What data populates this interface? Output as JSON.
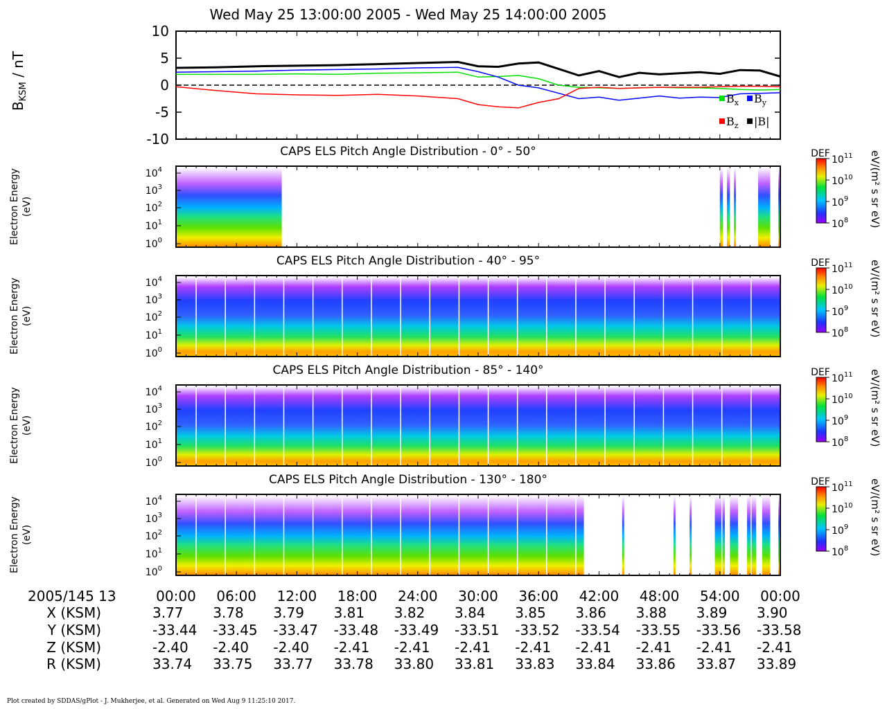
{
  "title": "Wed May 25 13:00:00 2005 - Wed May 25 14:00:00 2005",
  "footer": "Plot created by SDDAS/gPlot - J. Mukherjee, et al.  Generated on Wed Aug 9 11:25:10 2017.",
  "colors": {
    "bx": "#00e000",
    "by": "#0000ff",
    "bz": "#ff0000",
    "btot": "#000000"
  },
  "chart_data": [
    {
      "type": "line",
      "ylabel_main": "B",
      "ylabel_sub": "KSM",
      "ylabel_unit": " / nT",
      "ylim": [
        -10,
        10
      ],
      "yticks": [
        10,
        5,
        0,
        -5,
        -10
      ],
      "yticklabels": [
        "10",
        "5",
        "0",
        "-5",
        "-10"
      ],
      "x_minutes": [
        0,
        4,
        8,
        12,
        16,
        20,
        24,
        28,
        30,
        32,
        34,
        36,
        38,
        40,
        42,
        44,
        46,
        48,
        50,
        52,
        54,
        56,
        58,
        60
      ],
      "series": [
        {
          "name": "B",
          "sub": "x",
          "color_key": "bx",
          "values": [
            2.0,
            2.0,
            2.0,
            2.1,
            2.0,
            2.2,
            2.3,
            2.4,
            1.5,
            1.6,
            1.8,
            1.2,
            0.0,
            -0.4,
            -0.5,
            -0.6,
            -0.5,
            -0.4,
            -0.5,
            -0.5,
            -0.6,
            -0.8,
            -0.9,
            -0.8
          ]
        },
        {
          "name": "B",
          "sub": "y",
          "color_key": "by",
          "values": [
            2.4,
            2.5,
            2.6,
            2.8,
            2.9,
            3.0,
            3.2,
            3.3,
            2.5,
            1.5,
            0.0,
            -0.5,
            -1.5,
            -2.5,
            -2.2,
            -2.8,
            -2.4,
            -2.0,
            -2.4,
            -2.2,
            -2.3,
            -1.6,
            -1.5,
            -1.4
          ]
        },
        {
          "name": "B",
          "sub": "z",
          "color_key": "bz",
          "values": [
            -0.3,
            -1.0,
            -1.6,
            -1.8,
            -1.9,
            -1.7,
            -2.0,
            -2.5,
            -3.6,
            -4.0,
            -4.2,
            -3.2,
            -2.5,
            -0.6,
            -0.4,
            -0.6,
            -0.5,
            -0.4,
            -0.4,
            -0.4,
            -0.3,
            -0.2,
            -0.2,
            -0.3
          ]
        },
        {
          "name": "|B|",
          "sub": "",
          "color_key": "btot",
          "values": [
            3.2,
            3.3,
            3.5,
            3.6,
            3.7,
            3.9,
            4.1,
            4.3,
            3.5,
            3.4,
            4.0,
            4.2,
            3.0,
            1.8,
            2.6,
            1.5,
            2.3,
            2.0,
            2.2,
            2.4,
            2.1,
            2.8,
            2.7,
            1.6
          ]
        }
      ],
      "reference_line": 0
    },
    {
      "type": "heatmap",
      "title": "CAPS ELS Pitch Angle Distribution - 0° - 50°",
      "ylabel": [
        "Electron Energy",
        "(eV)"
      ],
      "yticklabels": [
        "10",
        "10",
        "10",
        "10",
        "10"
      ],
      "ytickexponents": [
        "4",
        "3",
        "2",
        "1",
        "0"
      ],
      "colorbar": {
        "label": "DEF",
        "ticks": [
          "10",
          "10",
          "10",
          "10"
        ],
        "exponents": [
          "11",
          "10",
          "9",
          "8"
        ],
        "unit_label": "eV/(m² s sr eV)"
      },
      "coverage_minutes": [
        [
          0,
          10.5
        ],
        [
          54,
          54.3
        ],
        [
          54.7,
          55
        ],
        [
          55.4,
          55.6
        ],
        [
          57.8,
          59
        ],
        [
          59.8,
          60
        ]
      ]
    },
    {
      "type": "heatmap",
      "title": "CAPS ELS Pitch Angle Distribution - 40° - 95°",
      "ylabel": [
        "Electron Energy",
        "(eV)"
      ],
      "yticklabels": [
        "10",
        "10",
        "10",
        "10",
        "10"
      ],
      "ytickexponents": [
        "4",
        "3",
        "2",
        "1",
        "0"
      ],
      "colorbar": {
        "label": "DEF",
        "ticks": [
          "10",
          "10",
          "10",
          "10"
        ],
        "exponents": [
          "11",
          "10",
          "9",
          "8"
        ],
        "unit_label": "eV/(m² s sr eV)"
      },
      "coverage_minutes": [
        [
          0,
          60
        ]
      ]
    },
    {
      "type": "heatmap",
      "title": "CAPS ELS Pitch Angle Distribution - 85° - 140°",
      "ylabel": [
        "Electron Energy",
        "(eV)"
      ],
      "yticklabels": [
        "10",
        "10",
        "10",
        "10",
        "10"
      ],
      "ytickexponents": [
        "4",
        "3",
        "2",
        "1",
        "0"
      ],
      "colorbar": {
        "label": "DEF",
        "ticks": [
          "10",
          "10",
          "10",
          "10"
        ],
        "exponents": [
          "11",
          "10",
          "9",
          "8"
        ],
        "unit_label": "eV/(m² s sr eV)"
      },
      "coverage_minutes": [
        [
          0,
          60
        ]
      ]
    },
    {
      "type": "heatmap",
      "title": "CAPS ELS Pitch Angle Distribution - 130° - 180°",
      "ylabel": [
        "Electron Energy",
        "(eV)"
      ],
      "yticklabels": [
        "10",
        "10",
        "10",
        "10",
        "10"
      ],
      "ytickexponents": [
        "4",
        "3",
        "2",
        "1",
        "0"
      ],
      "colorbar": {
        "label": "DEF",
        "ticks": [
          "10",
          "10",
          "10",
          "10"
        ],
        "exponents": [
          "11",
          "10",
          "9",
          "8"
        ],
        "unit_label": "eV/(m² s sr eV)"
      },
      "coverage_minutes": [
        [
          0,
          40.5
        ],
        [
          44.3,
          44.5
        ],
        [
          49.4,
          49.6
        ],
        [
          51,
          51.2
        ],
        [
          53.5,
          54.5
        ],
        [
          55,
          55.8
        ],
        [
          56.7,
          57.6
        ],
        [
          58.2,
          59
        ],
        [
          59.8,
          60
        ]
      ]
    }
  ],
  "axis_table": {
    "date_label": "2005/145 13",
    "times": [
      "00:00",
      "06:00",
      "12:00",
      "18:00",
      "24:00",
      "30:00",
      "36:00",
      "42:00",
      "48:00",
      "54:00",
      "00:00"
    ],
    "rows": [
      {
        "label": "X (KSM)",
        "values": [
          "3.77",
          "3.78",
          "3.79",
          "3.81",
          "3.82",
          "3.84",
          "3.85",
          "3.86",
          "3.88",
          "3.89",
          "3.90"
        ]
      },
      {
        "label": "Y (KSM)",
        "values": [
          "-33.44",
          "-33.45",
          "-33.47",
          "-33.48",
          "-33.49",
          "-33.51",
          "-33.52",
          "-33.54",
          "-33.55",
          "-33.56",
          "-33.58"
        ]
      },
      {
        "label": "Z (KSM)",
        "values": [
          "-2.40",
          "-2.40",
          "-2.40",
          "-2.41",
          "-2.41",
          "-2.41",
          "-2.41",
          "-2.41",
          "-2.41",
          "-2.41",
          "-2.41"
        ]
      },
      {
        "label": "R (KSM)",
        "values": [
          "33.74",
          "33.75",
          "33.77",
          "33.78",
          "33.80",
          "33.81",
          "33.83",
          "33.84",
          "33.86",
          "33.87",
          "33.89"
        ]
      }
    ]
  }
}
